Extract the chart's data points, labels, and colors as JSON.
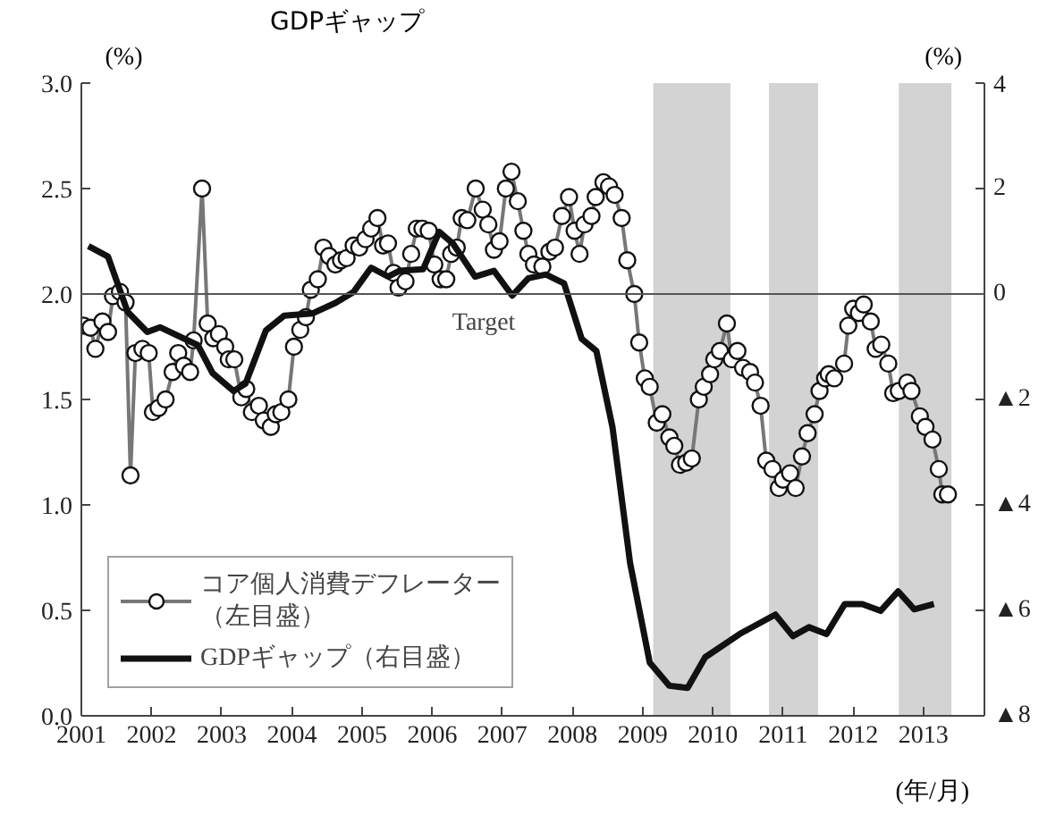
{
  "chart_data": {
    "type": "line",
    "title": "GDPギャップ",
    "ylabel": "(%)",
    "y2label": "(%)",
    "annotations": [
      "(年/月)"
    ],
    "xlim": [
      2001,
      2013.87
    ],
    "xticks": [
      2001,
      2002,
      2003,
      2004,
      2005,
      2006,
      2007,
      2008,
      2009,
      2010,
      2011,
      2012,
      2013
    ],
    "ylim": [
      0,
      3
    ],
    "yticks": [
      {
        "value": 0,
        "label": "0.0"
      },
      {
        "value": 0.5,
        "label": "0.5"
      },
      {
        "value": 1,
        "label": "1.0"
      },
      {
        "value": 1.5,
        "label": "1.5"
      },
      {
        "value": 2,
        "label": "2.0"
      },
      {
        "value": 2.5,
        "label": "2.5"
      },
      {
        "value": 3,
        "label": "3.0"
      }
    ],
    "y2lim": [
      -8,
      4
    ],
    "y2ticks": [
      {
        "value": -8,
        "label": "▲8"
      },
      {
        "value": -6,
        "label": "▲6"
      },
      {
        "value": -4,
        "label": "▲4"
      },
      {
        "value": -2,
        "label": "▲2"
      },
      0,
      2,
      4
    ],
    "grid": false,
    "legend": "bottom left",
    "ref_lines": [
      {
        "axis": "y",
        "value": 2.0,
        "label": "Target",
        "color": "#555555"
      }
    ],
    "bands": [
      {
        "axis": "x",
        "from": 2009.15,
        "to": 2010.25,
        "color": "#d3d3d3"
      },
      {
        "axis": "x",
        "from": 2010.8,
        "to": 2011.5,
        "color": "#d3d3d3"
      },
      {
        "axis": "x",
        "from": 2012.65,
        "to": 2013.4,
        "color": "#d3d3d3"
      }
    ],
    "series": [
      {
        "name": "コア個人消費デフレーター（左目盛）",
        "color": "#777777",
        "marker": "circle",
        "axis": "y",
        "x": [
          2001.03,
          2001.13,
          2001.2,
          2001.3,
          2001.38,
          2001.45,
          2001.55,
          2001.63,
          2001.7,
          2001.77,
          2001.87,
          2001.96,
          2002.02,
          2002.1,
          2002.2,
          2002.3,
          2002.38,
          2002.46,
          2002.55,
          2002.6,
          2002.72,
          2002.8,
          2002.88,
          2002.96,
          2003.05,
          2003.1,
          2003.18,
          2003.28,
          2003.35,
          2003.43,
          2003.53,
          2003.6,
          2003.7,
          2003.77,
          2003.85,
          2003.95,
          2004.03,
          2004.12,
          2004.2,
          2004.27,
          2004.37,
          2004.45,
          2004.53,
          2004.62,
          2004.7,
          2004.78,
          2004.88,
          2004.96,
          2005.05,
          2005.13,
          2005.22,
          2005.3,
          2005.37,
          2005.45,
          2005.52,
          2005.62,
          2005.7,
          2005.78,
          2005.86,
          2005.95,
          2006.03,
          2006.12,
          2006.2,
          2006.27,
          2006.35,
          2006.42,
          2006.5,
          2006.62,
          2006.72,
          2006.8,
          2006.88,
          2006.96,
          2007.05,
          2007.13,
          2007.22,
          2007.3,
          2007.37,
          2007.45,
          2007.57,
          2007.67,
          2007.75,
          2007.85,
          2007.95,
          2008.03,
          2008.1,
          2008.17,
          2008.27,
          2008.33,
          2008.44,
          2008.52,
          2008.6,
          2008.7,
          2008.78,
          2008.88,
          2008.95,
          2009.03,
          2009.1,
          2009.2,
          2009.28,
          2009.38,
          2009.45,
          2009.53,
          2009.62,
          2009.7,
          2009.8,
          2009.87,
          2009.96,
          2010.02,
          2010.1,
          2010.2,
          2010.27,
          2010.35,
          2010.43,
          2010.53,
          2010.6,
          2010.68,
          2010.76,
          2010.85,
          2010.94,
          2011.0,
          2011.1,
          2011.18,
          2011.27,
          2011.35,
          2011.45,
          2011.52,
          2011.6,
          2011.65,
          2011.73,
          2011.87,
          2011.93,
          2012.0,
          2012.08,
          2012.15,
          2012.25,
          2012.32,
          2012.4,
          2012.5,
          2012.57,
          2012.65,
          2012.77,
          2012.83,
          2012.95,
          2013.03,
          2013.13,
          2013.22,
          2013.27,
          2013.35
        ],
        "values": [
          1.85,
          1.84,
          1.74,
          1.87,
          1.82,
          1.99,
          2.01,
          1.96,
          1.14,
          1.72,
          1.74,
          1.72,
          1.44,
          1.46,
          1.5,
          1.63,
          1.72,
          1.66,
          1.63,
          1.78,
          2.5,
          1.86,
          1.79,
          1.81,
          1.75,
          1.69,
          1.69,
          1.51,
          1.55,
          1.44,
          1.47,
          1.4,
          1.37,
          1.43,
          1.44,
          1.5,
          1.75,
          1.83,
          1.89,
          2.02,
          2.07,
          2.22,
          2.18,
          2.14,
          2.16,
          2.17,
          2.23,
          2.22,
          2.26,
          2.31,
          2.36,
          2.23,
          2.24,
          2.1,
          2.03,
          2.06,
          2.19,
          2.31,
          2.31,
          2.3,
          2.14,
          2.07,
          2.07,
          2.19,
          2.22,
          2.36,
          2.35,
          2.5,
          2.4,
          2.33,
          2.21,
          2.25,
          2.5,
          2.58,
          2.44,
          2.3,
          2.19,
          2.14,
          2.13,
          2.2,
          2.22,
          2.37,
          2.46,
          2.3,
          2.19,
          2.33,
          2.37,
          2.46,
          2.53,
          2.51,
          2.47,
          2.36,
          2.16,
          2.0,
          1.77,
          1.6,
          1.56,
          1.39,
          1.43,
          1.32,
          1.28,
          1.19,
          1.2,
          1.22,
          1.5,
          1.56,
          1.62,
          1.69,
          1.73,
          1.86,
          1.69,
          1.73,
          1.65,
          1.63,
          1.58,
          1.47,
          1.21,
          1.17,
          1.08,
          1.12,
          1.15,
          1.08,
          1.23,
          1.34,
          1.43,
          1.54,
          1.6,
          1.62,
          1.6,
          1.67,
          1.85,
          1.93,
          1.91,
          1.95,
          1.87,
          1.74,
          1.76,
          1.67,
          1.53,
          1.54,
          1.58,
          1.54,
          1.42,
          1.37,
          1.31,
          1.17,
          1.05,
          1.05
        ]
      },
      {
        "name": "GDPギャップ（右目盛）",
        "color": "#111111",
        "marker": "none",
        "axis": "y2",
        "x": [
          2001.1,
          2001.38,
          2001.66,
          2001.94,
          2002.12,
          2002.66,
          2002.87,
          2003.17,
          2003.34,
          2003.63,
          2003.89,
          2004.29,
          2004.62,
          2004.88,
          2005.13,
          2005.37,
          2005.53,
          2005.87,
          2006.1,
          2006.3,
          2006.61,
          2006.88,
          2007.14,
          2007.37,
          2007.62,
          2007.88,
          2008.13,
          2008.34,
          2008.57,
          2008.82,
          2009.1,
          2009.38,
          2009.64,
          2009.89,
          2010.38,
          2010.89,
          2011.14,
          2011.37,
          2011.62,
          2011.88,
          2012.13,
          2012.39,
          2012.64,
          2012.87,
          2013.15
        ],
        "values": [
          0.91,
          0.71,
          -0.34,
          -0.72,
          -0.63,
          -0.97,
          -1.5,
          -1.84,
          -1.7,
          -0.69,
          -0.41,
          -0.37,
          -0.17,
          0.04,
          0.5,
          0.33,
          0.44,
          0.47,
          1.18,
          0.95,
          0.33,
          0.44,
          -0.03,
          0.3,
          0.37,
          0.2,
          -0.85,
          -1.08,
          -2.53,
          -5.1,
          -6.99,
          -7.43,
          -7.47,
          -6.89,
          -6.45,
          -6.08,
          -6.49,
          -6.32,
          -6.45,
          -5.88,
          -5.88,
          -6.01,
          -5.64,
          -5.98,
          -5.88
        ]
      }
    ]
  }
}
